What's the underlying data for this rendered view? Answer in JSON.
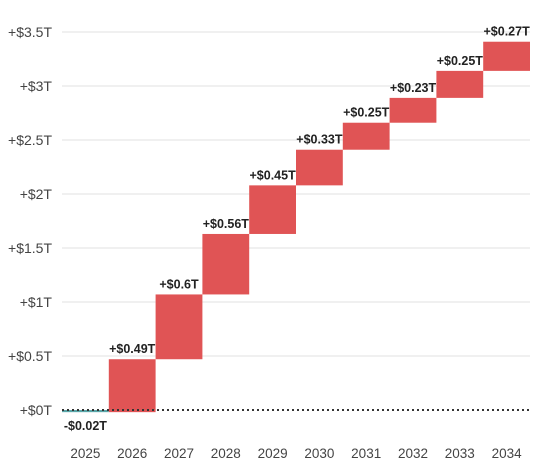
{
  "chart_data": {
    "type": "waterfall",
    "categories": [
      "2025",
      "2026",
      "2027",
      "2028",
      "2029",
      "2030",
      "2031",
      "2032",
      "2033",
      "2034"
    ],
    "values": [
      -0.02,
      0.49,
      0.6,
      0.56,
      0.45,
      0.33,
      0.25,
      0.23,
      0.25,
      0.27
    ],
    "value_labels": [
      "-$0.02T",
      "+$0.49T",
      "+$0.6T",
      "+$0.56T",
      "+$0.45T",
      "+$0.33T",
      "+$0.25T",
      "+$0.23T",
      "+$0.25T",
      "+$0.27T"
    ],
    "y_ticks": [
      0,
      0.5,
      1,
      1.5,
      2,
      2.5,
      3,
      3.5
    ],
    "y_tick_labels": [
      "+$0T",
      "+$0.5T",
      "+$1T",
      "+$1.5T",
      "+$2T",
      "+$2.5T",
      "+$3T",
      "+$3.5T"
    ],
    "ylim": [
      -0.15,
      3.5
    ],
    "grid": true,
    "title": "",
    "xlabel": "",
    "ylabel": "",
    "colors": {
      "positive": "#e05455",
      "negative": "#5aa6a8",
      "grid": "#e2e2e2",
      "zero_line": "#333333",
      "text": "#444444"
    }
  }
}
